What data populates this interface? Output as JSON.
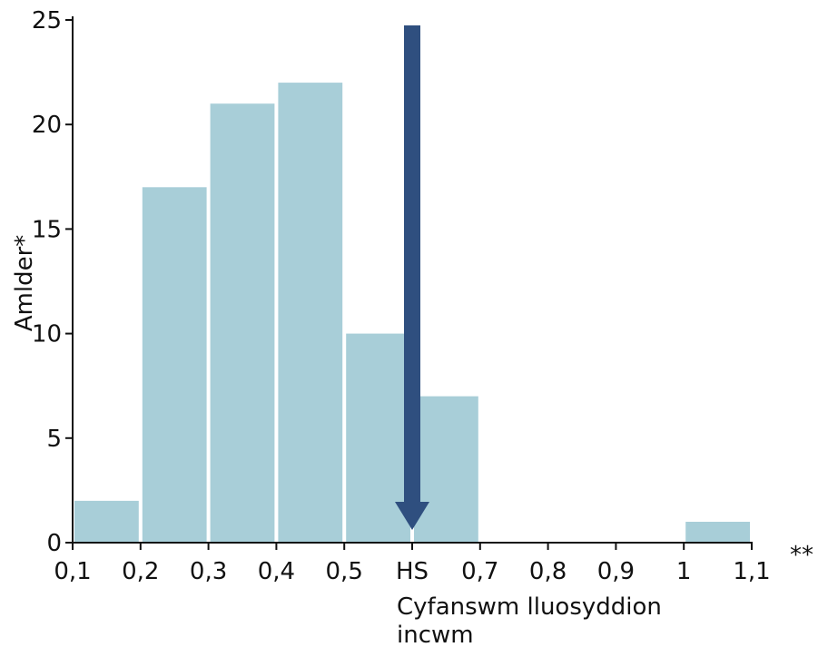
{
  "colors": {
    "bar": "#a8ced8",
    "arrow": "#2f4f7f",
    "axis": "#111111",
    "background": "#ffffff"
  },
  "chart_data": {
    "type": "bar",
    "title": "",
    "xlabel_lines": [
      "Cyfanswm lluosyddion",
      "incwm"
    ],
    "ylabel": "Amlder*",
    "x_note": "**",
    "x_ticks": [
      "0,1",
      "0,2",
      "0,3",
      "0,4",
      "0,5",
      "HS",
      "0,7",
      "0,8",
      "0,9",
      "1",
      "1,1"
    ],
    "y_ticks": [
      "0",
      "5",
      "10",
      "15",
      "20",
      "25"
    ],
    "ylim": [
      0,
      25
    ],
    "grid": false,
    "bins": [
      {
        "start": "0,1",
        "end": "0,2",
        "value": 2
      },
      {
        "start": "0,2",
        "end": "0,3",
        "value": 17
      },
      {
        "start": "0,3",
        "end": "0,4",
        "value": 21
      },
      {
        "start": "0,4",
        "end": "0,5",
        "value": 22
      },
      {
        "start": "0,5",
        "end": "HS",
        "value": 10
      },
      {
        "start": "HS",
        "end": "0,7",
        "value": 7
      },
      {
        "start": "0,7",
        "end": "0,8",
        "value": 0
      },
      {
        "start": "0,8",
        "end": "0,9",
        "value": 0
      },
      {
        "start": "0,9",
        "end": "1",
        "value": 0
      },
      {
        "start": "1",
        "end": "1,1",
        "value": 1
      }
    ],
    "marker": {
      "at": "HS",
      "style": "downward-arrow"
    }
  }
}
